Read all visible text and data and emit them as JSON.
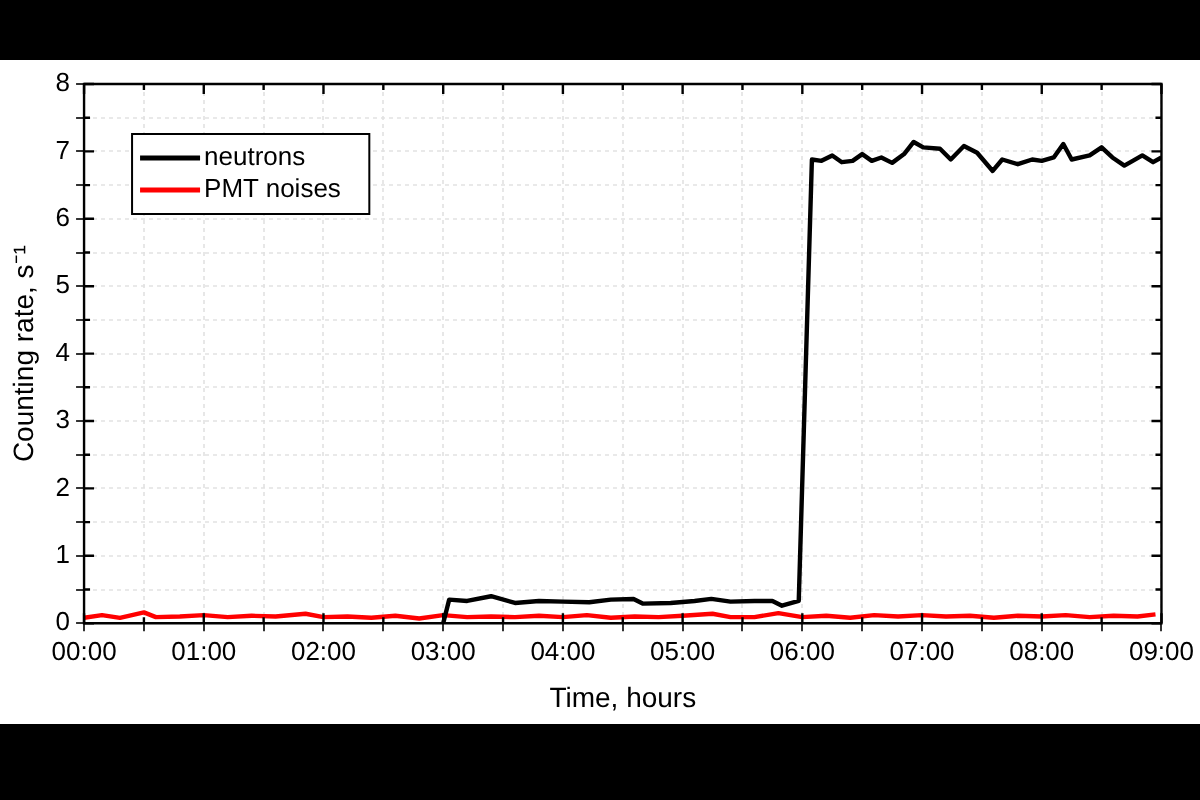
{
  "chart_data": {
    "type": "line",
    "xlabel": "Time, hours",
    "ylabel": "Counting rate, s⁻¹",
    "xlim": [
      0,
      9
    ],
    "ylim": [
      0,
      8
    ],
    "xticks": [
      {
        "value": 0,
        "label": "00:00"
      },
      {
        "value": 0.5,
        "label": null
      },
      {
        "value": 1,
        "label": "01:00"
      },
      {
        "value": 1.5,
        "label": null
      },
      {
        "value": 2,
        "label": "02:00"
      },
      {
        "value": 2.5,
        "label": null
      },
      {
        "value": 3,
        "label": "03:00"
      },
      {
        "value": 3.5,
        "label": null
      },
      {
        "value": 4,
        "label": "04:00"
      },
      {
        "value": 4.5,
        "label": null
      },
      {
        "value": 5,
        "label": "05:00"
      },
      {
        "value": 5.5,
        "label": null
      },
      {
        "value": 6,
        "label": "06:00"
      },
      {
        "value": 6.5,
        "label": null
      },
      {
        "value": 7,
        "label": "07:00"
      },
      {
        "value": 7.5,
        "label": null
      },
      {
        "value": 8,
        "label": "08:00"
      },
      {
        "value": 8.5,
        "label": null
      },
      {
        "value": 9,
        "label": "09:00"
      }
    ],
    "yticks": [
      0,
      {
        "value": 0.5,
        "label": null
      },
      1,
      {
        "value": 1.5,
        "label": null
      },
      2,
      {
        "value": 2.5,
        "label": null
      },
      3,
      {
        "value": 3.5,
        "label": null
      },
      4,
      {
        "value": 4.5,
        "label": null
      },
      5,
      {
        "value": 5.5,
        "label": null
      },
      6,
      {
        "value": 6.5,
        "label": null
      },
      7,
      {
        "value": 7.5,
        "label": null
      },
      8
    ],
    "grid": true,
    "legend": "top left",
    "marker": "none",
    "line_style": "solid",
    "series": [
      {
        "name": "neutrons",
        "color": "#000000",
        "x": [
          3.0,
          3.05,
          3.2,
          3.4,
          3.6,
          3.8,
          4.0,
          4.22,
          4.4,
          4.59,
          4.67,
          4.9,
          5.1,
          5.24,
          5.4,
          5.6,
          5.75,
          5.83,
          5.97,
          6.08,
          6.16,
          6.25,
          6.33,
          6.42,
          6.5,
          6.58,
          6.66,
          6.75,
          6.85,
          6.93,
          7.01,
          7.15,
          7.24,
          7.35,
          7.46,
          7.59,
          7.67,
          7.8,
          7.92,
          8.0,
          8.1,
          8.18,
          8.25,
          8.4,
          8.5,
          8.59,
          8.69,
          8.76,
          8.84,
          8.93,
          9.0
        ],
        "values": [
          0,
          0.35,
          0.33,
          0.4,
          0.3,
          0.33,
          0.32,
          0.31,
          0.35,
          0.36,
          0.29,
          0.3,
          0.33,
          0.36,
          0.32,
          0.33,
          0.33,
          0.26,
          0.33,
          6.88,
          6.86,
          6.94,
          6.84,
          6.86,
          6.96,
          6.86,
          6.91,
          6.83,
          6.96,
          7.14,
          7.06,
          7.04,
          6.88,
          7.08,
          6.98,
          6.71,
          6.88,
          6.81,
          6.88,
          6.86,
          6.91,
          7.11,
          6.88,
          6.94,
          7.06,
          6.91,
          6.79,
          6.86,
          6.94,
          6.84,
          6.91
        ]
      },
      {
        "name": "PMT noises",
        "color": "#ff0000",
        "x": [
          0,
          0.15,
          0.3,
          0.5,
          0.6,
          0.8,
          1.0,
          1.2,
          1.4,
          1.6,
          1.85,
          2.0,
          2.2,
          2.4,
          2.6,
          2.8,
          3.0,
          3.2,
          3.4,
          3.6,
          3.8,
          4.0,
          4.2,
          4.4,
          4.6,
          4.8,
          5.0,
          5.25,
          5.4,
          5.6,
          5.8,
          6.0,
          6.2,
          6.4,
          6.6,
          6.8,
          7.0,
          7.2,
          7.4,
          7.6,
          7.8,
          8.0,
          8.2,
          8.4,
          8.6,
          8.8,
          8.95
        ],
        "values": [
          0.08,
          0.12,
          0.08,
          0.16,
          0.09,
          0.1,
          0.12,
          0.09,
          0.11,
          0.1,
          0.14,
          0.09,
          0.1,
          0.08,
          0.11,
          0.07,
          0.12,
          0.09,
          0.1,
          0.09,
          0.11,
          0.09,
          0.12,
          0.08,
          0.1,
          0.09,
          0.11,
          0.14,
          0.09,
          0.09,
          0.15,
          0.09,
          0.11,
          0.08,
          0.12,
          0.1,
          0.12,
          0.1,
          0.11,
          0.08,
          0.11,
          0.1,
          0.12,
          0.09,
          0.11,
          0.1,
          0.13
        ]
      }
    ]
  }
}
